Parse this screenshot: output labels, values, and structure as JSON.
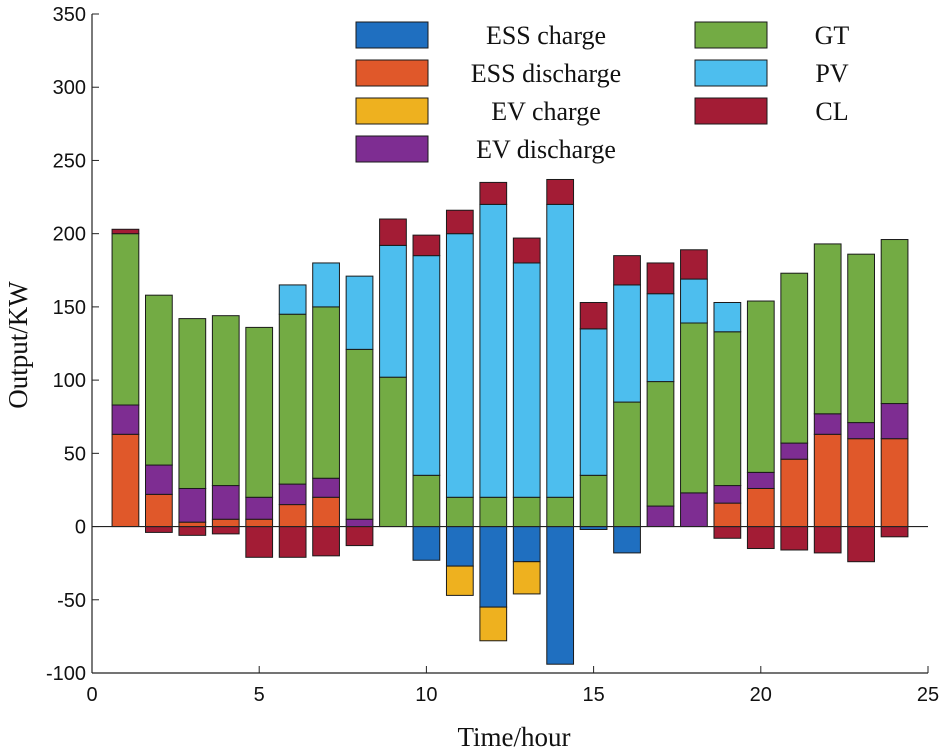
{
  "chart_data": {
    "type": "bar",
    "stacked": true,
    "title": "",
    "xlabel": "Time/hour",
    "ylabel": "Output/KW",
    "xlim": [
      0,
      25
    ],
    "ylim": [
      -100,
      350
    ],
    "xticks": [
      0,
      5,
      10,
      15,
      20,
      25
    ],
    "yticks": [
      -100,
      -50,
      0,
      50,
      100,
      150,
      200,
      250,
      300,
      350
    ],
    "legend_position": "top-right",
    "x": [
      1,
      2,
      3,
      4,
      5,
      6,
      7,
      8,
      9,
      10,
      11,
      12,
      13,
      14,
      15,
      16,
      17,
      18,
      19,
      20,
      21,
      22,
      23,
      24
    ],
    "positive_order": [
      "ESS discharge",
      "EV discharge",
      "GT",
      "PV",
      "CL"
    ],
    "negative_order": [
      "ESS charge",
      "EV charge",
      "CL"
    ],
    "series": [
      {
        "name": "ESS charge",
        "color": "#1f6fc0",
        "values": [
          0,
          0,
          0,
          0,
          0,
          0,
          0,
          0,
          0,
          -23,
          -27,
          -55,
          -24,
          -94,
          -2,
          -18,
          0,
          0,
          0,
          0,
          0,
          0,
          0,
          0
        ]
      },
      {
        "name": "ESS discharge",
        "color": "#e0582a",
        "values": [
          63,
          22,
          3,
          5,
          5,
          15,
          20,
          0,
          0,
          0,
          0,
          0,
          0,
          0,
          0,
          0,
          0,
          0,
          16,
          26,
          46,
          63,
          60,
          60
        ]
      },
      {
        "name": "EV charge",
        "color": "#eeb11f",
        "values": [
          0,
          0,
          0,
          0,
          0,
          0,
          0,
          0,
          0,
          0,
          -20,
          -23,
          -22,
          0,
          0,
          0,
          0,
          0,
          0,
          0,
          0,
          0,
          0,
          0
        ]
      },
      {
        "name": "EV discharge",
        "color": "#7e2d92",
        "values": [
          20,
          20,
          23,
          23,
          15,
          14,
          13,
          5,
          0,
          0,
          0,
          0,
          0,
          0,
          0,
          0,
          14,
          23,
          12,
          11,
          11,
          14,
          11,
          24
        ]
      },
      {
        "name": "GT",
        "color": "#73ab44",
        "values": [
          117,
          116,
          116,
          116,
          116,
          116,
          117,
          116,
          102,
          35,
          20,
          20,
          20,
          20,
          35,
          85,
          85,
          116,
          105,
          117,
          116,
          116,
          115,
          112
        ]
      },
      {
        "name": "PV",
        "color": "#4dbeee",
        "values": [
          0,
          0,
          0,
          0,
          0,
          20,
          30,
          50,
          90,
          150,
          180,
          200,
          160,
          200,
          100,
          80,
          60,
          30,
          20,
          0,
          0,
          0,
          0,
          0
        ]
      },
      {
        "name": "CL",
        "color": "#a31c35",
        "values": [
          3,
          -4,
          -6,
          -5,
          -21,
          -21,
          -20,
          -13,
          18,
          14,
          16,
          15,
          17,
          17,
          18,
          20,
          21,
          20,
          -8,
          -15,
          -16,
          -18,
          -24,
          -7
        ]
      }
    ]
  }
}
